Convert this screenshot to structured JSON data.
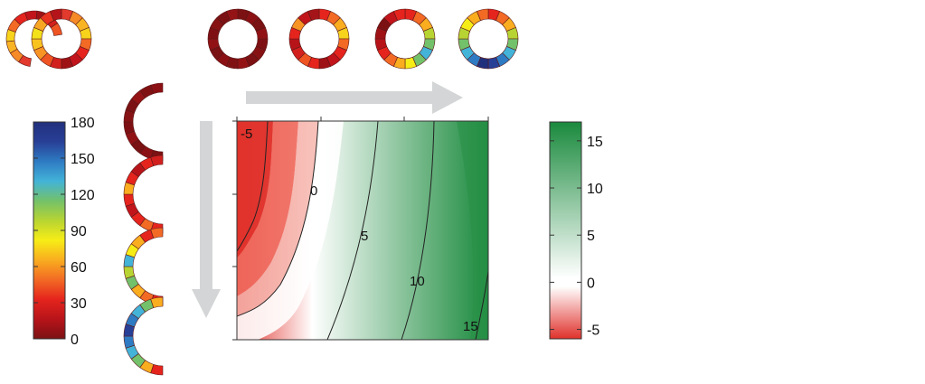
{
  "angle_colorbar": {
    "ticks": [
      "180",
      "150",
      "120",
      "90",
      "60",
      "30",
      "0"
    ],
    "tick_values": [
      180,
      150,
      120,
      90,
      60,
      30,
      0
    ],
    "range": [
      0,
      180
    ],
    "stops": [
      "#7b1113",
      "#b7141a",
      "#e5241d",
      "#f26a24",
      "#f9ad1f",
      "#f7ed16",
      "#b8d432",
      "#73c16a",
      "#43b3d8",
      "#2e7bc3",
      "#283f96",
      "#21307d"
    ]
  },
  "value_colorbar": {
    "ticks": [
      "15",
      "10",
      "5",
      "0",
      "-5"
    ],
    "tick_values": [
      15,
      10,
      5,
      0,
      -5
    ],
    "range": [
      -6,
      17
    ],
    "low_color": "#e0312b",
    "mid_color": "#ffffff",
    "high_color": "#1a8a3d"
  },
  "contour_plot": {
    "levels": [
      "-5",
      "0",
      "5",
      "10",
      "15"
    ],
    "level_values": [
      -5,
      0,
      5,
      10,
      15
    ]
  },
  "top_rings": [
    [
      "#e23a2c",
      "#f58a26",
      "#f9b425",
      "#f7d31c",
      "#f26a24",
      "#e5241d",
      "#c1151b",
      "#9e1216",
      "#d2201e",
      "#ef5423",
      "#f79424",
      "#f9c31f",
      "#f3e11a",
      "#f7a623",
      "#e9331f",
      "#b5141b"
    ],
    [
      "#7b1113",
      "#8a1014",
      "#7a1113",
      "#901215",
      "#7e1013",
      "#861214",
      "#7b1113",
      "#941315",
      "#801113",
      "#8a1014",
      "#7a1113",
      "#901215",
      "#7e1013",
      "#861214",
      "#7b1113",
      "#941315"
    ],
    [
      "#e5241d",
      "#f26a24",
      "#f9ad1f",
      "#f7d31c",
      "#f26a24",
      "#e5241d",
      "#c1151b",
      "#9e1216",
      "#e5241d",
      "#ef5423",
      "#d2201e",
      "#b7141a",
      "#e5241d",
      "#f79424",
      "#c1151b",
      "#a51418"
    ],
    [
      "#e5241d",
      "#f26a24",
      "#f9ad1f",
      "#b8d432",
      "#73c16a",
      "#43b3d8",
      "#73c16a",
      "#f7ed16",
      "#f9ad1f",
      "#f26a24",
      "#e5241d",
      "#b7141a",
      "#9e1216",
      "#7b1113",
      "#c1151b",
      "#e5241d"
    ],
    [
      "#e5241d",
      "#f26a24",
      "#f9ad1f",
      "#b8d432",
      "#73c16a",
      "#43b3d8",
      "#2e7bc3",
      "#283f96",
      "#21307d",
      "#2e7bc3",
      "#43b3d8",
      "#73c16a",
      "#b8d432",
      "#f7ed16",
      "#f9ad1f",
      "#f26a24"
    ]
  ],
  "side_arcs": [
    [
      "#7b1113",
      "#8a1014",
      "#7a1113",
      "#901215",
      "#7e1013",
      "#861214",
      "#7b1113",
      "#941315",
      "#801113",
      "#8a1014"
    ],
    [
      "#e5241d",
      "#f26a24",
      "#e5241d",
      "#c1151b",
      "#e5241d",
      "#f9ad1f",
      "#e5241d",
      "#b7141a",
      "#e5241d",
      "#d2201e"
    ],
    [
      "#e5241d",
      "#f26a24",
      "#f9ad1f",
      "#73c16a",
      "#b8d432",
      "#43b3d8",
      "#f7ed16",
      "#f9ad1f",
      "#e5241d",
      "#f26a24"
    ],
    [
      "#e5241d",
      "#f9ad1f",
      "#73c16a",
      "#43b3d8",
      "#2e7bc3",
      "#283f96",
      "#2e7bc3",
      "#43b3d8",
      "#73c16a",
      "#f9ad1f"
    ]
  ]
}
